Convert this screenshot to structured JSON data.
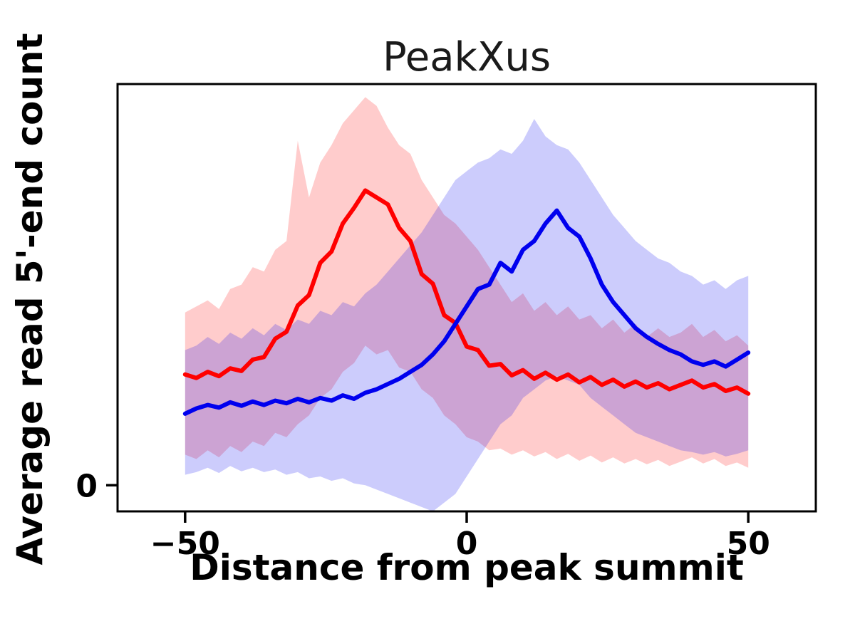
{
  "figure": {
    "title": "PeakXus",
    "xlabel": "Distance from peak summit",
    "ylabel": "Average read 5'-end count"
  },
  "chart_data": {
    "type": "line",
    "title": "PeakXus",
    "xlabel": "Distance from peak summit",
    "ylabel": "Average read 5'-end count",
    "grid": false,
    "legend": null,
    "xlim": [
      -62,
      62
    ],
    "ylim": [
      -0.3,
      4.6
    ],
    "xticks": [
      {
        "value": -50,
        "label": "−50"
      },
      {
        "value": 0,
        "label": "0"
      },
      {
        "value": 50,
        "label": "50"
      }
    ],
    "yticks": [
      {
        "value": 0,
        "label": "0"
      }
    ],
    "x": [
      -50,
      -48,
      -46,
      -44,
      -42,
      -40,
      -38,
      -36,
      -34,
      -32,
      -30,
      -28,
      -26,
      -24,
      -22,
      -20,
      -18,
      -16,
      -14,
      -12,
      -10,
      -8,
      -6,
      -4,
      -2,
      0,
      2,
      4,
      6,
      8,
      10,
      12,
      14,
      16,
      18,
      20,
      22,
      24,
      26,
      28,
      30,
      32,
      34,
      36,
      38,
      40,
      42,
      44,
      46,
      48,
      50
    ],
    "series": [
      {
        "id": "red-series",
        "name": "red",
        "color": "#ff0000",
        "band_opacity": 0.2,
        "mean": [
          1.27,
          1.23,
          1.3,
          1.25,
          1.34,
          1.31,
          1.44,
          1.47,
          1.68,
          1.76,
          2.06,
          2.18,
          2.55,
          2.68,
          3.0,
          3.18,
          3.38,
          3.3,
          3.22,
          2.95,
          2.8,
          2.42,
          2.31,
          1.95,
          1.86,
          1.59,
          1.55,
          1.37,
          1.39,
          1.26,
          1.32,
          1.22,
          1.29,
          1.21,
          1.27,
          1.18,
          1.24,
          1.15,
          1.21,
          1.13,
          1.19,
          1.12,
          1.17,
          1.1,
          1.15,
          1.2,
          1.12,
          1.16,
          1.08,
          1.12,
          1.05
        ],
        "upper": [
          1.98,
          2.05,
          2.12,
          2.02,
          2.25,
          2.3,
          2.5,
          2.45,
          2.7,
          2.8,
          3.95,
          3.3,
          3.7,
          3.9,
          4.15,
          4.3,
          4.45,
          4.35,
          4.1,
          3.9,
          3.8,
          3.5,
          3.3,
          3.1,
          3.0,
          2.85,
          2.7,
          2.5,
          2.3,
          2.1,
          2.2,
          2.0,
          2.1,
          1.95,
          2.05,
          1.9,
          1.95,
          1.8,
          1.9,
          1.75,
          1.85,
          1.7,
          1.8,
          1.7,
          1.75,
          1.85,
          1.7,
          1.78,
          1.65,
          1.72,
          1.6
        ],
        "lower": [
          0.35,
          0.3,
          0.4,
          0.32,
          0.45,
          0.38,
          0.5,
          0.45,
          0.6,
          0.55,
          0.7,
          0.8,
          1.0,
          1.1,
          1.3,
          1.4,
          1.6,
          1.5,
          1.55,
          1.35,
          1.3,
          1.1,
          1.0,
          0.8,
          0.7,
          0.55,
          0.5,
          0.4,
          0.42,
          0.35,
          0.4,
          0.33,
          0.38,
          0.3,
          0.36,
          0.28,
          0.34,
          0.26,
          0.32,
          0.25,
          0.3,
          0.24,
          0.29,
          0.22,
          0.27,
          0.32,
          0.25,
          0.3,
          0.22,
          0.26,
          0.2
        ]
      },
      {
        "id": "blue-series",
        "name": "blue",
        "color": "#0000ee",
        "band_opacity": 0.2,
        "mean": [
          0.82,
          0.88,
          0.92,
          0.89,
          0.95,
          0.91,
          0.96,
          0.92,
          0.97,
          0.94,
          0.99,
          0.95,
          1.0,
          0.97,
          1.03,
          0.99,
          1.06,
          1.1,
          1.16,
          1.22,
          1.3,
          1.38,
          1.5,
          1.65,
          1.85,
          2.05,
          2.25,
          2.3,
          2.55,
          2.45,
          2.7,
          2.8,
          3.0,
          3.15,
          2.95,
          2.85,
          2.6,
          2.3,
          2.1,
          1.95,
          1.8,
          1.7,
          1.62,
          1.55,
          1.5,
          1.42,
          1.38,
          1.42,
          1.36,
          1.44,
          1.52
        ],
        "upper": [
          1.55,
          1.6,
          1.7,
          1.62,
          1.75,
          1.68,
          1.8,
          1.72,
          1.85,
          1.78,
          1.9,
          1.85,
          2.0,
          1.95,
          2.1,
          2.05,
          2.2,
          2.3,
          2.45,
          2.6,
          2.75,
          2.9,
          3.1,
          3.3,
          3.5,
          3.6,
          3.7,
          3.75,
          3.85,
          3.8,
          3.95,
          4.2,
          4.0,
          3.9,
          3.85,
          3.7,
          3.5,
          3.3,
          3.1,
          2.95,
          2.8,
          2.7,
          2.6,
          2.55,
          2.45,
          2.4,
          2.3,
          2.35,
          2.25,
          2.35,
          2.4
        ],
        "lower": [
          0.12,
          0.15,
          0.2,
          0.14,
          0.22,
          0.16,
          0.2,
          0.15,
          0.18,
          0.12,
          0.15,
          0.08,
          0.1,
          0.05,
          0.08,
          0.02,
          0.0,
          -0.05,
          -0.1,
          -0.15,
          -0.2,
          -0.25,
          -0.3,
          -0.2,
          -0.1,
          0.1,
          0.3,
          0.5,
          0.7,
          0.8,
          1.0,
          1.1,
          1.2,
          1.25,
          1.2,
          1.15,
          1.0,
          0.9,
          0.8,
          0.7,
          0.6,
          0.55,
          0.5,
          0.45,
          0.4,
          0.38,
          0.35,
          0.38,
          0.33,
          0.36,
          0.4
        ]
      }
    ]
  }
}
